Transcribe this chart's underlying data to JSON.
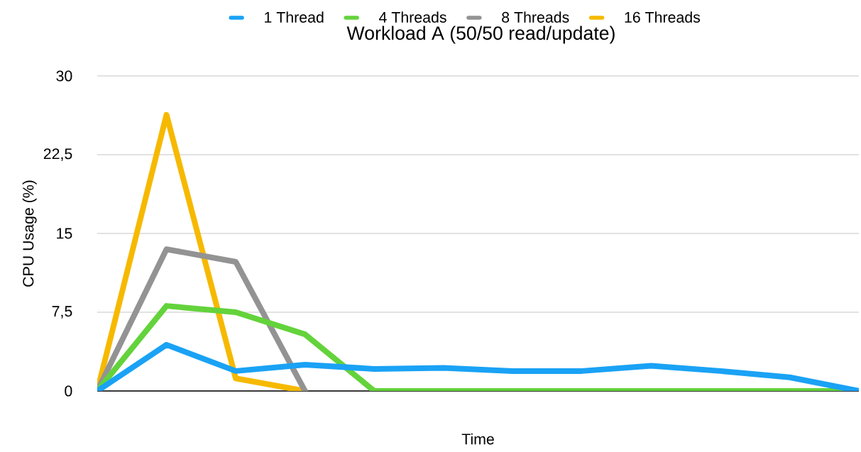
{
  "chart_data": {
    "type": "line",
    "title": "Workload A (50/50 read/update)",
    "xlabel": "Time",
    "ylabel": "CPU Usage (%)",
    "categories": [
      null,
      null,
      null,
      null,
      null,
      null,
      null,
      null,
      null,
      null,
      null,
      null
    ],
    "series": [
      {
        "name": "1 Thread",
        "color": "#1aa2f5",
        "values": [
          0,
          4.4,
          1.9,
          2.5,
          2.1,
          2.2,
          1.9,
          1.9,
          2.4,
          1.9,
          1.3,
          0
        ]
      },
      {
        "name": "4 Threads",
        "color": "#63d33b",
        "values": [
          0,
          8.1,
          7.5,
          5.4,
          0,
          0,
          0,
          0,
          0,
          0,
          0,
          0
        ]
      },
      {
        "name": "8 Threads",
        "color": "#939393",
        "values": [
          0,
          13.5,
          12.3,
          0,
          null,
          null,
          null,
          null,
          null,
          null,
          null,
          null
        ]
      },
      {
        "name": "16 Threads",
        "color": "#f6b900",
        "values": [
          0,
          26.3,
          1.2,
          0,
          null,
          null,
          null,
          null,
          null,
          null,
          null,
          null
        ]
      }
    ],
    "ylim": [
      0,
      30
    ],
    "yticks": [
      0,
      {
        "value": 7.5,
        "label": "7,5"
      },
      15,
      {
        "value": 22.5,
        "label": "22,5"
      },
      30
    ],
    "grid": "y",
    "legend": "top",
    "tick_labels": "y",
    "marker": "none",
    "line_style": "solid"
  }
}
